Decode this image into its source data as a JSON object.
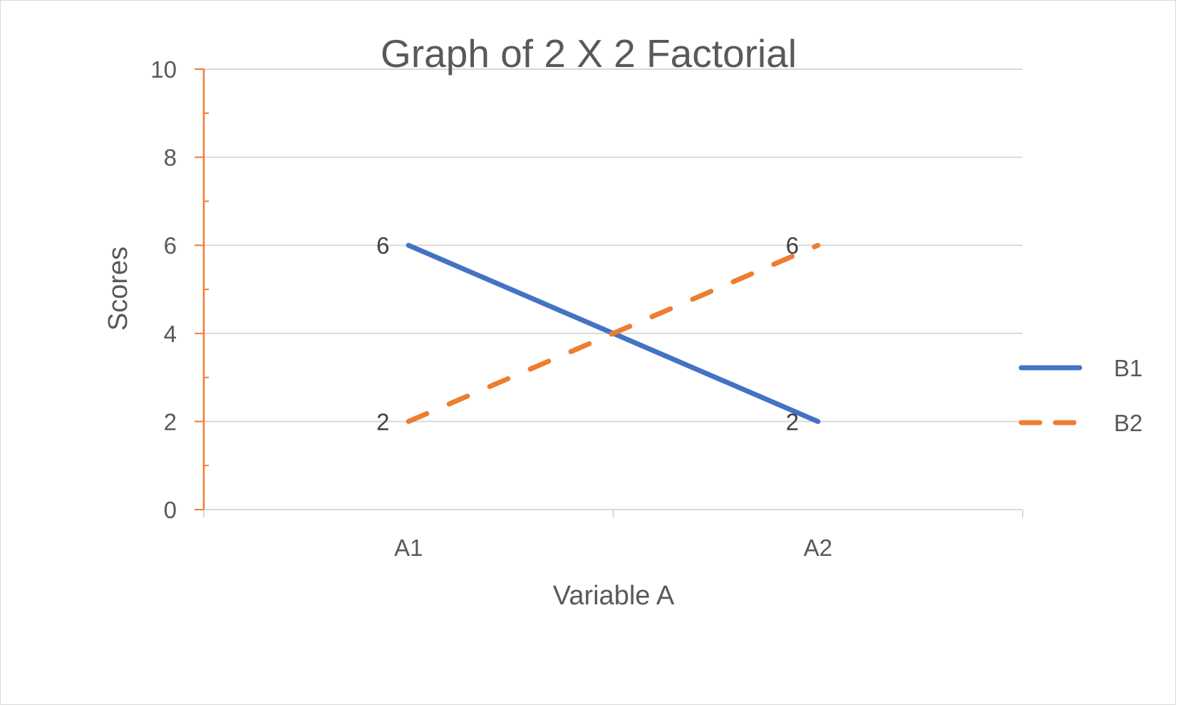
{
  "chart_data": {
    "type": "line",
    "title": "Graph of 2 X 2 Factorial",
    "xlabel": "Variable A",
    "ylabel": "Scores",
    "categories": [
      "A1",
      "A2"
    ],
    "ylim": [
      0,
      10
    ],
    "yticks": [
      "0",
      "2",
      "4",
      "6",
      "8",
      "10"
    ],
    "grid": true,
    "legend": "right",
    "series": [
      {
        "name": "B1",
        "values": [
          6,
          2
        ],
        "data_labels": [
          "6",
          "2"
        ],
        "color": "#4472c4",
        "style": "solid"
      },
      {
        "name": "B2",
        "values": [
          2,
          6
        ],
        "data_labels": [
          "2",
          "6"
        ],
        "color": "#ed7d31",
        "style": "dashed"
      }
    ],
    "colors": {
      "gridline": "#d9d9d9",
      "y_axis": "#ed7d31",
      "x_axis": "#d9d9d9",
      "text": "#595959"
    }
  }
}
